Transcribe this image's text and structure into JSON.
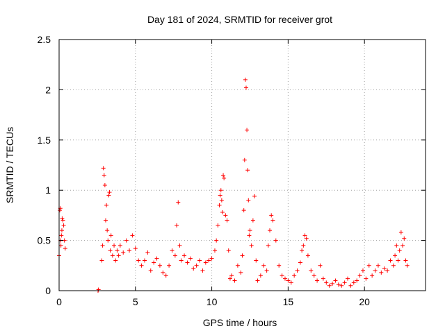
{
  "chart_data": {
    "type": "scatter",
    "title": "Day 181 of 2024, SRMTID for receiver grot",
    "xlabel": "GPS time / hours",
    "ylabel": "SRMTID / TECUs",
    "xlim": [
      0,
      24
    ],
    "ylim": [
      0,
      2.5
    ],
    "xticks": [
      0,
      5,
      10,
      15,
      20
    ],
    "xtick_labels": [
      "0",
      "5",
      "10",
      "15",
      "20"
    ],
    "yticks": [
      0,
      0.5,
      1,
      1.5,
      2,
      2.5
    ],
    "ytick_labels": [
      "0",
      "0.5",
      "1",
      "1.5",
      "2",
      "2.5"
    ],
    "grid": true,
    "marker": "+",
    "series": [
      {
        "name": "SRMTID",
        "color": "#ff0000",
        "x": [
          0.0,
          0.05,
          0.08,
          0.1,
          0.12,
          0.15,
          0.18,
          0.2,
          0.25,
          0.3,
          0.35,
          0.4,
          2.55,
          2.58,
          2.8,
          2.85,
          2.9,
          2.95,
          3.0,
          3.05,
          3.1,
          3.15,
          3.2,
          3.25,
          3.3,
          3.35,
          3.4,
          3.5,
          3.6,
          3.7,
          3.8,
          3.9,
          4.0,
          4.2,
          4.4,
          4.6,
          4.8,
          5.0,
          5.2,
          5.4,
          5.6,
          5.8,
          6.0,
          6.2,
          6.4,
          6.6,
          6.8,
          7.0,
          7.2,
          7.4,
          7.6,
          7.7,
          7.8,
          7.9,
          8.0,
          8.2,
          8.4,
          8.6,
          8.8,
          9.0,
          9.2,
          9.4,
          9.6,
          9.8,
          10.0,
          10.2,
          10.3,
          10.4,
          10.5,
          10.55,
          10.6,
          10.65,
          10.7,
          10.75,
          10.8,
          10.9,
          11.0,
          11.1,
          11.2,
          11.3,
          11.5,
          11.7,
          11.9,
          12.0,
          12.1,
          12.15,
          12.2,
          12.25,
          12.3,
          12.35,
          12.4,
          12.45,
          12.5,
          12.6,
          12.7,
          12.8,
          12.9,
          13.0,
          13.2,
          13.4,
          13.6,
          13.7,
          13.8,
          13.9,
          14.0,
          14.2,
          14.4,
          14.6,
          14.8,
          15.0,
          15.2,
          15.4,
          15.6,
          15.8,
          15.9,
          16.0,
          16.1,
          16.2,
          16.3,
          16.5,
          16.7,
          16.9,
          17.1,
          17.3,
          17.5,
          17.7,
          17.9,
          18.1,
          18.3,
          18.5,
          18.7,
          18.9,
          19.1,
          19.3,
          19.5,
          19.7,
          19.9,
          20.1,
          20.3,
          20.5,
          20.7,
          20.9,
          21.1,
          21.3,
          21.5,
          21.7,
          21.9,
          22.0,
          22.1,
          22.2,
          22.3,
          22.4,
          22.5,
          22.6,
          22.7,
          22.8
        ],
        "y": [
          0.35,
          0.8,
          0.82,
          0.5,
          0.45,
          0.55,
          0.6,
          0.72,
          0.7,
          0.65,
          0.5,
          0.42,
          0.0,
          0.01,
          0.3,
          0.45,
          1.22,
          1.15,
          1.05,
          0.7,
          0.85,
          0.6,
          0.5,
          0.95,
          0.98,
          0.4,
          0.55,
          0.35,
          0.45,
          0.3,
          0.4,
          0.35,
          0.45,
          0.38,
          0.5,
          0.4,
          0.55,
          0.42,
          0.3,
          0.25,
          0.3,
          0.38,
          0.2,
          0.28,
          0.32,
          0.25,
          0.18,
          0.15,
          0.25,
          0.4,
          0.35,
          0.65,
          0.88,
          0.45,
          0.3,
          0.35,
          0.28,
          0.32,
          0.22,
          0.25,
          0.3,
          0.2,
          0.28,
          0.3,
          0.32,
          0.4,
          0.5,
          0.65,
          0.85,
          0.95,
          1.0,
          0.9,
          0.78,
          1.15,
          1.12,
          0.75,
          0.7,
          0.4,
          0.12,
          0.15,
          0.1,
          0.25,
          0.18,
          0.35,
          0.8,
          1.3,
          2.1,
          2.02,
          1.6,
          1.2,
          0.9,
          0.55,
          0.6,
          0.45,
          0.7,
          0.94,
          0.3,
          0.1,
          0.15,
          0.25,
          0.2,
          0.45,
          0.6,
          0.75,
          0.7,
          0.5,
          0.25,
          0.15,
          0.12,
          0.1,
          0.08,
          0.15,
          0.2,
          0.28,
          0.4,
          0.45,
          0.55,
          0.52,
          0.35,
          0.2,
          0.15,
          0.1,
          0.25,
          0.12,
          0.08,
          0.05,
          0.07,
          0.1,
          0.06,
          0.05,
          0.08,
          0.12,
          0.05,
          0.08,
          0.1,
          0.15,
          0.2,
          0.12,
          0.25,
          0.15,
          0.2,
          0.25,
          0.18,
          0.22,
          0.2,
          0.3,
          0.25,
          0.35,
          0.45,
          0.3,
          0.4,
          0.58,
          0.45,
          0.52,
          0.3,
          0.25
        ]
      }
    ]
  }
}
